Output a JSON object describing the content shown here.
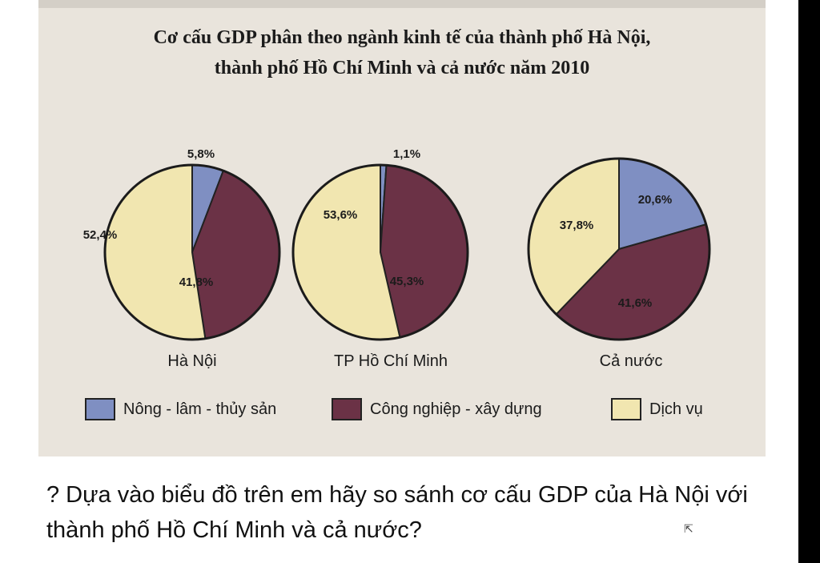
{
  "title_line1": "Cơ cấu GDP phân theo ngành kinh tế của thành phố Hà Nội,",
  "title_line2": "thành phố Hồ Chí Minh và cả nước năm 2010",
  "colors": {
    "nong_lam_thuy_san": "#7f8fc2",
    "cong_nghiep_xay_dung": "#6b3246",
    "dich_vu": "#f1e6b0"
  },
  "chart_data": {
    "type": "pie",
    "title": "Cơ cấu GDP phân theo ngành kinh tế của thành phố Hà Nội, thành phố Hồ Chí Minh và cả nước năm 2010",
    "categories": [
      "Nông - lâm - thủy sản",
      "Công nghiệp - xây dựng",
      "Dịch vụ"
    ],
    "legend_position": "bottom",
    "pies": [
      {
        "name": "Hà Nội",
        "values": [
          5.8,
          41.8,
          52.4
        ],
        "labels": [
          "5,8%",
          "41,8%",
          "52,4%"
        ]
      },
      {
        "name": "TP Hồ Chí Minh",
        "values": [
          1.1,
          45.3,
          53.6
        ],
        "labels": [
          "1,1%",
          "45,3%",
          "53,6%"
        ]
      },
      {
        "name": "Cả nước",
        "values": [
          20.6,
          41.6,
          37.8
        ],
        "labels": [
          "20,6%",
          "41,6%",
          "37,8%"
        ]
      }
    ]
  },
  "question": "? Dựa vào biểu đồ trên em hãy so sánh cơ cấu GDP của Hà Nội với thành phố Hồ Chí Minh và cả nước?"
}
